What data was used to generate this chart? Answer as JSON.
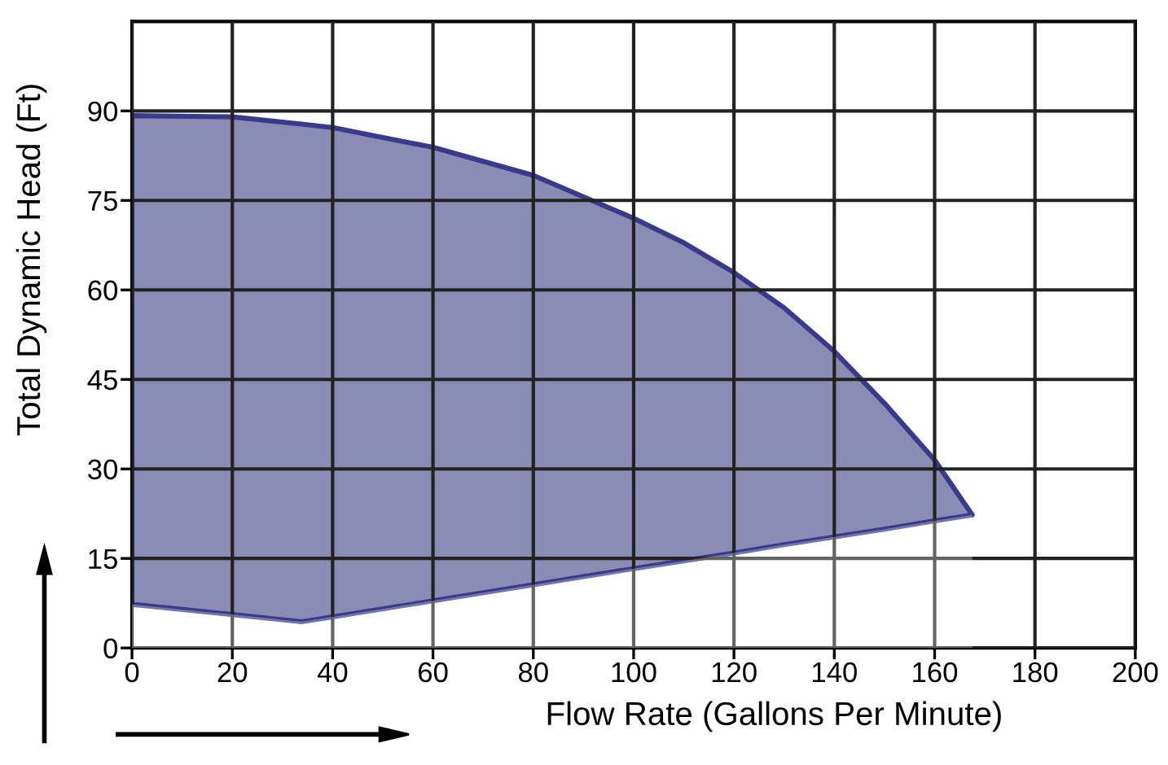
{
  "chart_data": {
    "type": "area",
    "stacked": true,
    "xlabel": "Flow Rate (Gallons Per Minute)",
    "ylabel": "Total Dynamic Head (Ft)",
    "x": [
      0,
      20,
      33.8,
      40,
      60,
      80,
      100,
      110,
      120,
      130,
      140,
      150,
      160,
      167.5
    ],
    "series": [
      {
        "color": "#ffffff",
        "values": [
          7.3,
          5.6,
          4.4,
          5.2,
          7.9,
          10.6,
          13.3,
          14.6,
          15.9,
          17.3,
          18.6,
          19.9,
          21.3,
          22.3
        ]
      },
      {
        "color": "#8b8bb3",
        "values": [
          81.9,
          83.4,
          83.4,
          82.0,
          76.0,
          68.6,
          58.7,
          53.3,
          47.0,
          39.7,
          31.1,
          21.1,
          10.2,
          0.0
        ]
      }
    ],
    "xlim": [
      0,
      200
    ],
    "xticks": [
      0,
      20,
      40,
      60,
      80,
      100,
      120,
      140,
      160,
      180,
      200
    ],
    "ylim": [
      0,
      105
    ],
    "yticks": [
      0,
      15,
      30,
      45,
      60,
      75,
      90
    ],
    "grid": true,
    "legend": false
  }
}
